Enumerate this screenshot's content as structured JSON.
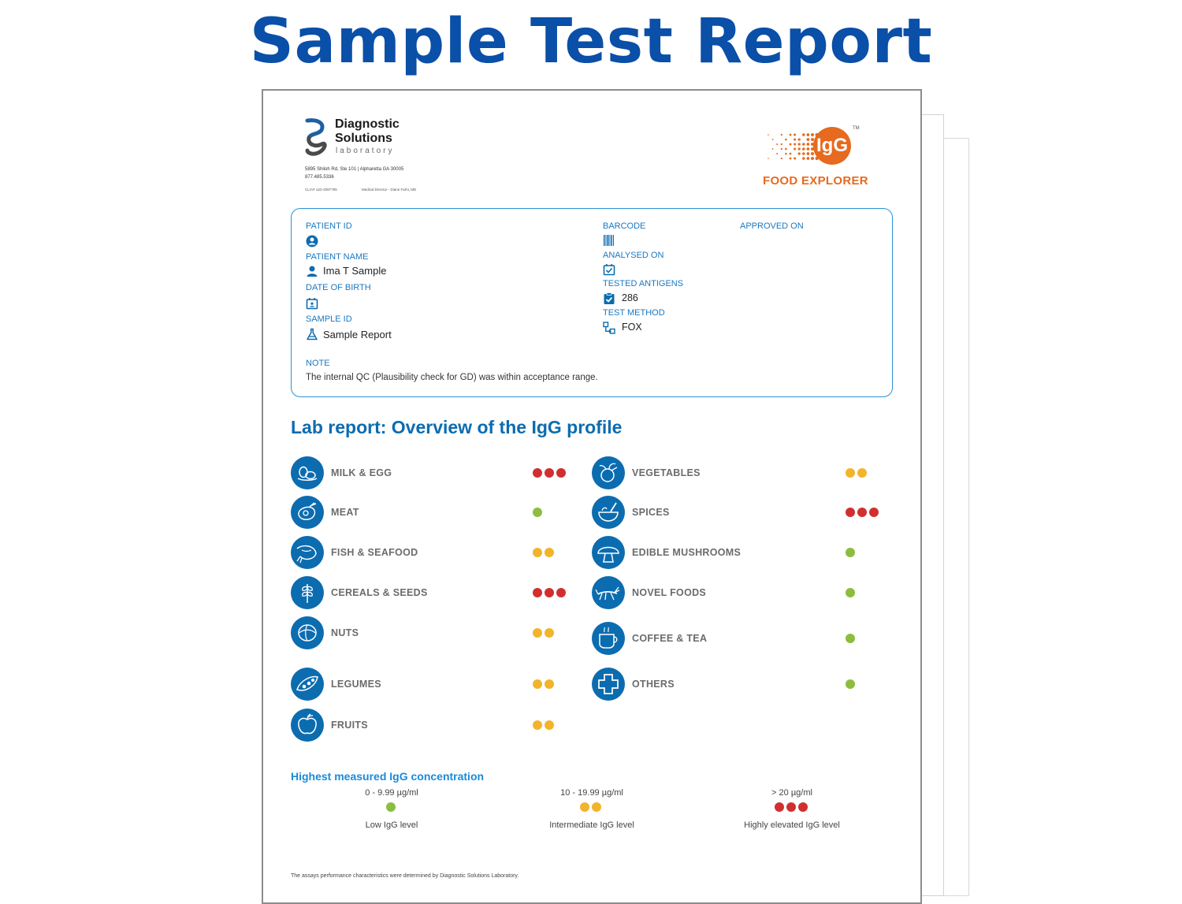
{
  "page_title": "Sample Test Report",
  "lab": {
    "name_line1": "Diagnostic",
    "name_line2": "Solutions",
    "name_sub": "laboratory",
    "address": "5895 Shiloh Rd, Ste 101  |  Alpharetta GA 30005",
    "phone": "877.485.5336",
    "clia": "CLIA# 11D-2097795",
    "medical_director": "Medical Director - Diane Farhi, MD"
  },
  "product": {
    "badge": "IgG",
    "trademark": "TM",
    "name": "FOOD EXPLORER"
  },
  "patient": {
    "patient_id_label": "PATIENT ID",
    "patient_id_value": "",
    "patient_name_label": "PATIENT NAME",
    "patient_name_value": "Ima T Sample",
    "dob_label": "DATE OF BIRTH",
    "dob_value": "",
    "sample_id_label": "SAMPLE ID",
    "sample_id_value": "Sample Report",
    "barcode_label": "BARCODE",
    "analysed_on_label": "ANALYSED ON",
    "tested_antigens_label": "TESTED ANTIGENS",
    "tested_antigens_value": "286",
    "test_method_label": "TEST METHOD",
    "test_method_value": "FOX",
    "approved_on_label": "APPROVED ON",
    "note_label": "NOTE",
    "note_value": "The internal QC (Plausibility check for GD) was within acceptance range."
  },
  "overview": {
    "title": "Lab report: Overview of the IgG profile",
    "left_categories": [
      {
        "label": "MILK & EGG",
        "level": 3,
        "icon": "milk-egg-icon"
      },
      {
        "label": "MEAT",
        "level": 1,
        "icon": "meat-icon"
      },
      {
        "label": "FISH & SEAFOOD",
        "level": 2,
        "icon": "fish-icon"
      },
      {
        "label": "CEREALS & SEEDS",
        "level": 3,
        "icon": "wheat-icon"
      },
      {
        "label": "NUTS",
        "level": 2,
        "icon": "nut-icon"
      },
      {
        "label": "LEGUMES",
        "level": 2,
        "icon": "legume-icon"
      },
      {
        "label": "FRUITS",
        "level": 2,
        "icon": "apple-icon"
      }
    ],
    "right_categories": [
      {
        "label": "VEGETABLES",
        "level": 2,
        "icon": "vegetable-icon"
      },
      {
        "label": "SPICES",
        "level": 3,
        "icon": "spice-bowl-icon"
      },
      {
        "label": "EDIBLE MUSHROOMS",
        "level": 1,
        "icon": "mushroom-icon"
      },
      {
        "label": "NOVEL FOODS",
        "level": 1,
        "icon": "cricket-icon"
      },
      {
        "label": "COFFEE & TEA",
        "level": 1,
        "icon": "cup-icon"
      },
      {
        "label": "OTHERS",
        "level": 1,
        "icon": "plus-icon"
      }
    ]
  },
  "legend": {
    "title": "Highest measured IgG concentration",
    "items": [
      {
        "range": "0 - 9.99 µg/ml",
        "desc": "Low IgG level",
        "level": 1
      },
      {
        "range": "10 - 19.99 µg/ml",
        "desc": "Intermediate IgG level",
        "level": 2
      },
      {
        "range": "> 20 µg/ml",
        "desc": "Highly elevated IgG level",
        "level": 3
      }
    ]
  },
  "level_colors": {
    "1": "#8cbd3f",
    "2": "#f2b42a",
    "3": "#d12f2f"
  },
  "brand_colors": {
    "title": "#0a4fa8",
    "accent": "#0c6cb0",
    "box": "#2a93d5",
    "orange": "#e66a1f"
  },
  "footer": "The assays performance characteristics were determined by Diagnostic Solutions Laboratory."
}
